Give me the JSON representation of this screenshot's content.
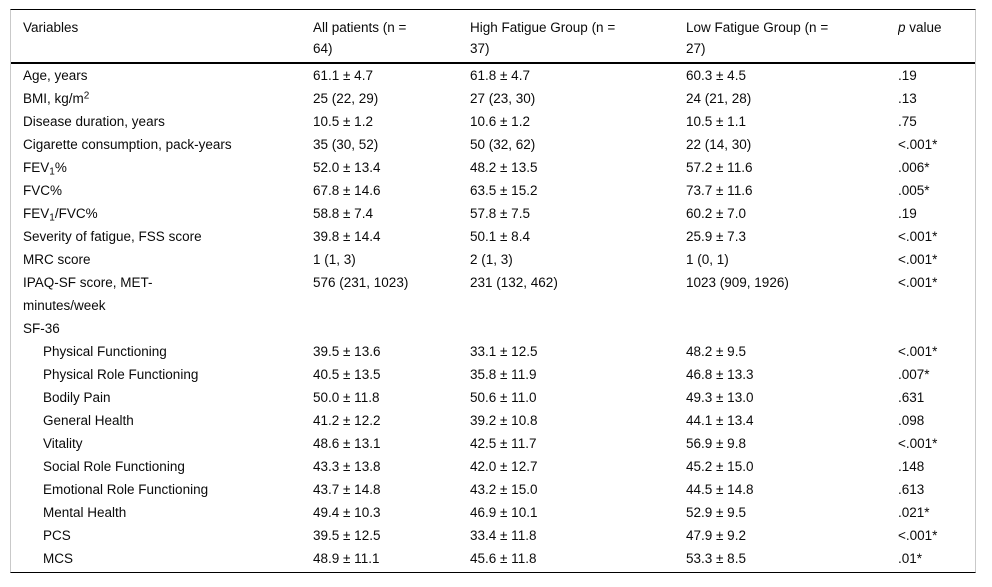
{
  "table": {
    "columns": [
      {
        "label": "Variables"
      },
      {
        "label": "All patients (n =\n64)"
      },
      {
        "label": "High Fatigue Group (n =\n37)"
      },
      {
        "label": "Low Fatigue Group (n =\n27)"
      },
      {
        "segments": [
          {
            "text": "p",
            "italic": true
          },
          {
            "text": " value"
          }
        ]
      }
    ],
    "rows": [
      {
        "label": "Age, years",
        "cells": [
          "61.1 ± 4.7",
          "61.8 ± 4.7",
          "60.3 ± 4.5",
          ".19"
        ]
      },
      {
        "segments": [
          {
            "text": "BMI, kg/m"
          },
          {
            "text": "2",
            "script": "sup"
          }
        ],
        "cells": [
          "25 (22, 29)",
          "27 (23, 30)",
          "24 (21, 28)",
          ".13"
        ]
      },
      {
        "label": "Disease duration, years",
        "cells": [
          "10.5 ± 1.2",
          "10.6 ± 1.2",
          "10.5 ± 1.1",
          ".75"
        ]
      },
      {
        "label": "Cigarette consumption, pack-years",
        "cells": [
          "35 (30, 52)",
          "50 (32, 62)",
          "22 (14, 30)",
          "<.001*"
        ]
      },
      {
        "segments": [
          {
            "text": "FEV"
          },
          {
            "text": "1",
            "script": "sub"
          },
          {
            "text": "%"
          }
        ],
        "cells": [
          "52.0 ± 13.4",
          "48.2 ± 13.5",
          "57.2 ± 11.6",
          ".006*"
        ]
      },
      {
        "label": "FVC%",
        "cells": [
          "67.8 ± 14.6",
          "63.5 ± 15.2",
          "73.7 ± 11.6",
          ".005*"
        ]
      },
      {
        "segments": [
          {
            "text": "FEV"
          },
          {
            "text": "1",
            "script": "sub"
          },
          {
            "text": "/FVC%"
          }
        ],
        "cells": [
          "58.8 ± 7.4",
          "57.8 ± 7.5",
          "60.2 ± 7.0",
          ".19"
        ]
      },
      {
        "label": "Severity of fatigue, FSS score",
        "cells": [
          "39.8 ± 14.4",
          "50.1 ± 8.4",
          "25.9 ± 7.3",
          "<.001*"
        ]
      },
      {
        "label": "MRC score",
        "cells": [
          "1 (1, 3)",
          "2 (1, 3)",
          "1 (0, 1)",
          "<.001*"
        ]
      },
      {
        "label": "IPAQ-SF score, MET-\nminutes/week",
        "cells": [
          "576 (231, 1023)",
          "231 (132, 462)",
          "1023 (909, 1926)",
          "<.001*"
        ]
      },
      {
        "label": "SF-36",
        "section": true,
        "cells": [
          "",
          "",
          "",
          ""
        ]
      },
      {
        "label": "Physical Functioning",
        "indent": true,
        "cells": [
          "39.5 ± 13.6",
          "33.1 ± 12.5",
          "48.2 ± 9.5",
          "<.001*"
        ]
      },
      {
        "label": "Physical Role Functioning",
        "indent": true,
        "cells": [
          "40.5 ± 13.5",
          "35.8 ± 11.9",
          "46.8 ± 13.3",
          ".007*"
        ]
      },
      {
        "label": "Bodily Pain",
        "indent": true,
        "cells": [
          "50.0 ± 11.8",
          "50.6 ± 11.0",
          "49.3 ± 13.0",
          ".631"
        ]
      },
      {
        "label": "General Health",
        "indent": true,
        "cells": [
          "41.2 ± 12.2",
          "39.2 ± 10.8",
          "44.1 ± 13.4",
          ".098"
        ]
      },
      {
        "label": "Vitality",
        "indent": true,
        "cells": [
          "48.6 ± 13.1",
          "42.5 ± 11.7",
          "56.9 ± 9.8",
          "<.001*"
        ]
      },
      {
        "label": "Social Role Functioning",
        "indent": true,
        "cells": [
          "43.3 ± 13.8",
          "42.0 ± 12.7",
          "45.2 ± 15.0",
          ".148"
        ]
      },
      {
        "label": "Emotional Role Functioning",
        "indent": true,
        "cells": [
          "43.7 ± 14.8",
          "43.2 ± 15.0",
          "44.5 ± 14.8",
          ".613"
        ]
      },
      {
        "label": "Mental Health",
        "indent": true,
        "cells": [
          "49.4 ± 10.3",
          "46.9 ± 10.1",
          "52.9 ± 9.5",
          ".021*"
        ]
      },
      {
        "label": "PCS",
        "indent": true,
        "cells": [
          "39.5 ± 12.5",
          "33.4 ± 11.8",
          "47.9 ± 9.2",
          "<.001*"
        ]
      },
      {
        "label": "MCS",
        "indent": true,
        "cells": [
          "48.9 ± 11.1",
          "45.6 ± 11.8",
          "53.3 ± 8.5",
          ".01*"
        ]
      }
    ]
  }
}
